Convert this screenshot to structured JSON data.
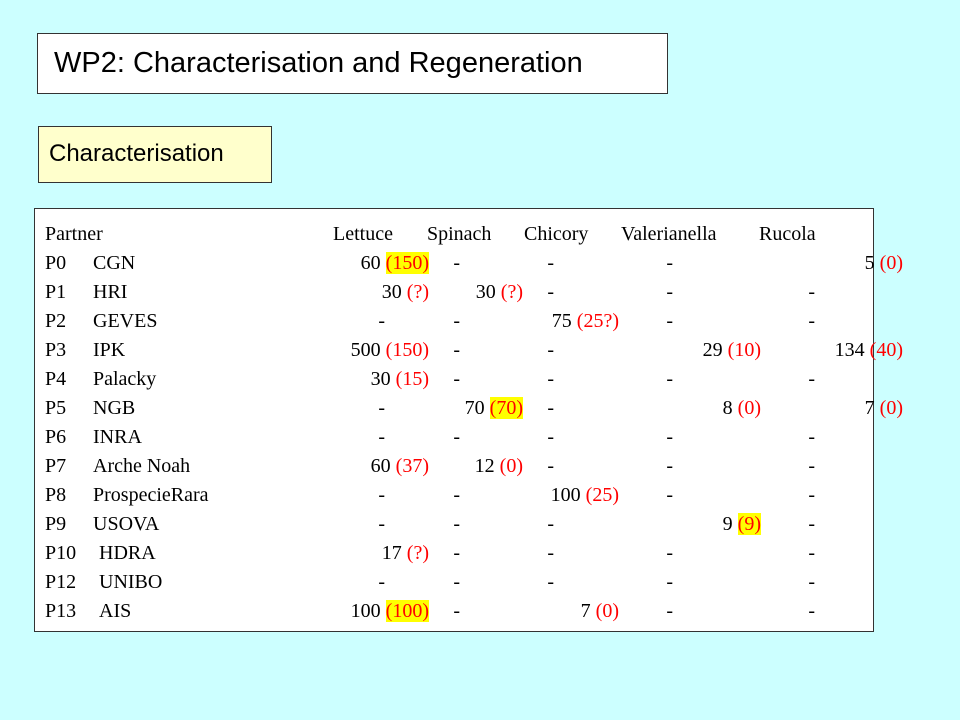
{
  "title": "WP2: Characterisation and Regeneration",
  "section": "Characterisation",
  "table": {
    "header": {
      "partner": "Partner",
      "cols": [
        "Lettuce",
        "Spinach",
        "Chicory",
        "Valerianella",
        "Rucola"
      ]
    },
    "rows": [
      {
        "code": "P0",
        "name": "CGN",
        "cells": [
          {
            "v": "60",
            "p": "(150)",
            "hl": true
          },
          {
            "v": "-",
            "p": ""
          },
          {
            "v": "-",
            "p": ""
          },
          {
            "v": "-",
            "p": ""
          },
          {
            "v": "5",
            "p": "(0)"
          }
        ]
      },
      {
        "code": "P1",
        "name": "HRI",
        "cells": [
          {
            "v": "30",
            "p": "(?)"
          },
          {
            "v": "30",
            "p": "(?)"
          },
          {
            "v": "-",
            "p": ""
          },
          {
            "v": "-",
            "p": ""
          },
          {
            "v": "-",
            "p": ""
          }
        ]
      },
      {
        "code": "P2",
        "name": "GEVES",
        "cells": [
          {
            "v": "-",
            "p": ""
          },
          {
            "v": "-",
            "p": ""
          },
          {
            "v": "75",
            "p": "(25?)"
          },
          {
            "v": "-",
            "p": ""
          },
          {
            "v": "-",
            "p": ""
          }
        ]
      },
      {
        "code": "P3",
        "name": "IPK",
        "cells": [
          {
            "v": "500",
            "p": "(150)"
          },
          {
            "v": "-",
            "p": ""
          },
          {
            "v": "-",
            "p": ""
          },
          {
            "v": "29",
            "p": "(10)"
          },
          {
            "v": "134",
            "p": "(40)"
          }
        ]
      },
      {
        "code": "P4",
        "name": "Palacky",
        "cells": [
          {
            "v": "30",
            "p": "(15)"
          },
          {
            "v": "-",
            "p": ""
          },
          {
            "v": "-",
            "p": ""
          },
          {
            "v": "-",
            "p": ""
          },
          {
            "v": "-",
            "p": ""
          }
        ]
      },
      {
        "code": "P5",
        "name": "NGB",
        "cells": [
          {
            "v": "-",
            "p": ""
          },
          {
            "v": "70",
            "p": "(70)",
            "hl": true
          },
          {
            "v": "-",
            "p": ""
          },
          {
            "v": "8",
            "p": "(0)"
          },
          {
            "v": "7",
            "p": "(0)"
          }
        ]
      },
      {
        "code": "P6",
        "name": "INRA",
        "cells": [
          {
            "v": "-",
            "p": ""
          },
          {
            "v": "-",
            "p": ""
          },
          {
            "v": "-",
            "p": ""
          },
          {
            "v": "-",
            "p": ""
          },
          {
            "v": "-",
            "p": ""
          }
        ]
      },
      {
        "code": "P7",
        "name": "Arche Noah",
        "cells": [
          {
            "v": "60",
            "p": "(37)"
          },
          {
            "v": "12",
            "p": "(0)"
          },
          {
            "v": "-",
            "p": ""
          },
          {
            "v": "-",
            "p": ""
          },
          {
            "v": "-",
            "p": ""
          }
        ]
      },
      {
        "code": "P8",
        "name": "ProspecieRara",
        "cells": [
          {
            "v": "-",
            "p": ""
          },
          {
            "v": "-",
            "p": ""
          },
          {
            "v": "100",
            "p": "(25)"
          },
          {
            "v": "-",
            "p": ""
          },
          {
            "v": "-",
            "p": ""
          }
        ]
      },
      {
        "code": "P9",
        "name": "USOVA",
        "cells": [
          {
            "v": "-",
            "p": ""
          },
          {
            "v": "-",
            "p": ""
          },
          {
            "v": "-",
            "p": ""
          },
          {
            "v": "9",
            "p": "(9)",
            "hl": true
          },
          {
            "v": "-",
            "p": ""
          }
        ]
      },
      {
        "code": "P10",
        "name": "HDRA",
        "cells": [
          {
            "v": "17",
            "p": "(?)"
          },
          {
            "v": "-",
            "p": ""
          },
          {
            "v": "-",
            "p": ""
          },
          {
            "v": "-",
            "p": ""
          },
          {
            "v": "-",
            "p": ""
          }
        ]
      },
      {
        "code": "P12",
        "name": "UNIBO",
        "cells": [
          {
            "v": "-",
            "p": ""
          },
          {
            "v": "-",
            "p": ""
          },
          {
            "v": "-",
            "p": ""
          },
          {
            "v": "-",
            "p": ""
          },
          {
            "v": "-",
            "p": ""
          }
        ]
      },
      {
        "code": "P13",
        "name": "AIS",
        "cells": [
          {
            "v": "100",
            "p": "(100)",
            "hl": true
          },
          {
            "v": "-",
            "p": ""
          },
          {
            "v": "7",
            "p": "(0)"
          },
          {
            "v": "-",
            "p": ""
          },
          {
            "v": "-",
            "p": ""
          }
        ]
      }
    ]
  },
  "colors": {
    "background": "#ccffff",
    "title_box": "#ffffff",
    "section_box": "#ffffcc",
    "note_text": "#ff0000",
    "highlight": "#ffff00"
  }
}
